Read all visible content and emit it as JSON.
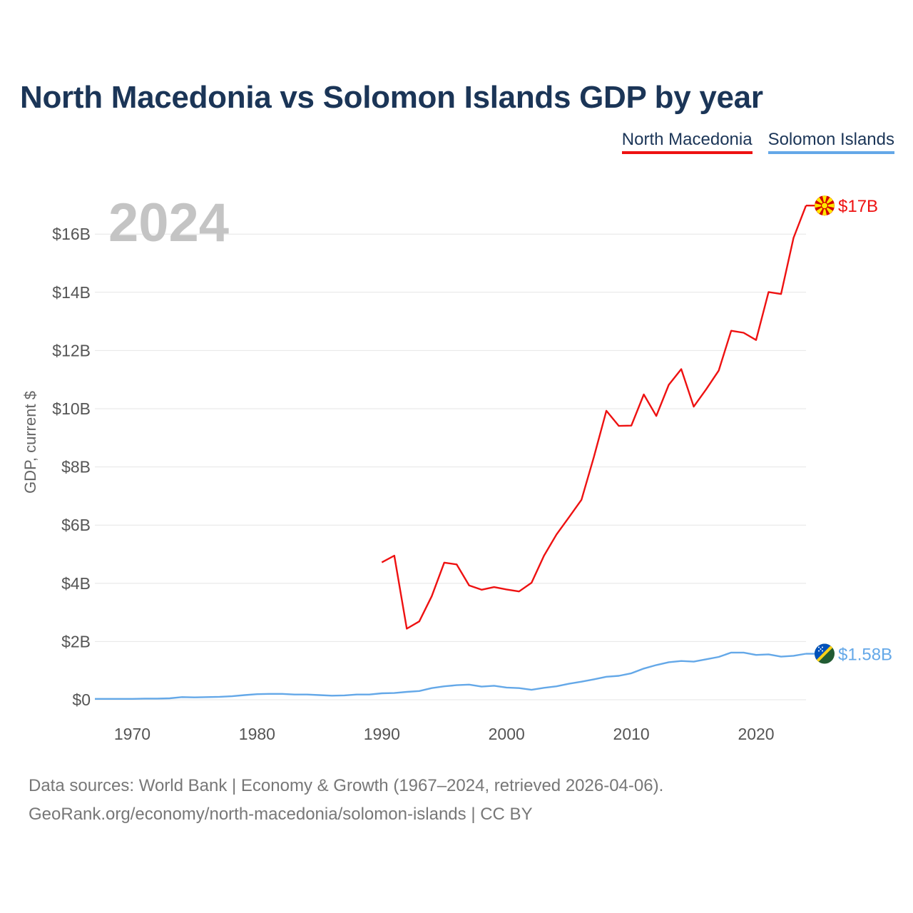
{
  "title": "North Macedonia vs Solomon Islands GDP by year",
  "year_watermark": "2024",
  "legend": [
    {
      "label": "North Macedonia",
      "color": "#ee1111"
    },
    {
      "label": "Solomon Islands",
      "color": "#64a8e8"
    }
  ],
  "source": {
    "line1": "Data sources: World Bank | Economy & Growth (1967–2024, retrieved 2026-04-06).",
    "line2": "GeoRank.org/economy/north-macedonia/solomon-islands | CC BY"
  },
  "chart_data": {
    "type": "line",
    "title": "North Macedonia vs Solomon Islands GDP by year",
    "ylabel": "GDP, current $",
    "xlabel": "",
    "xlim": [
      1967,
      2024
    ],
    "ylim": [
      0,
      17.5
    ],
    "grid": true,
    "x_ticks": [
      1970,
      1980,
      1990,
      2000,
      2010,
      2020
    ],
    "y_ticks": [
      {
        "value": 0,
        "label": "$0"
      },
      {
        "value": 2,
        "label": "$2B"
      },
      {
        "value": 4,
        "label": "$4B"
      },
      {
        "value": 6,
        "label": "$6B"
      },
      {
        "value": 8,
        "label": "$8B"
      },
      {
        "value": 10,
        "label": "$10B"
      },
      {
        "value": 12,
        "label": "$12B"
      },
      {
        "value": 14,
        "label": "$14B"
      },
      {
        "value": 16,
        "label": "$16B"
      }
    ],
    "series": [
      {
        "name": "North Macedonia",
        "color": "#ee1111",
        "flag_icon": "north-macedonia-flag-icon",
        "end_label": "$17B",
        "x": [
          1990,
          1991,
          1992,
          1993,
          1994,
          1995,
          1996,
          1997,
          1998,
          1999,
          2000,
          2001,
          2002,
          2003,
          2004,
          2005,
          2006,
          2007,
          2008,
          2009,
          2010,
          2011,
          2012,
          2013,
          2014,
          2015,
          2016,
          2017,
          2018,
          2019,
          2020,
          2021,
          2022,
          2023,
          2024
        ],
        "values": [
          4.72,
          4.95,
          2.44,
          2.69,
          3.56,
          4.71,
          4.65,
          3.93,
          3.78,
          3.87,
          3.79,
          3.72,
          4.02,
          4.95,
          5.68,
          6.27,
          6.87,
          8.34,
          9.93,
          9.41,
          9.42,
          10.49,
          9.75,
          10.82,
          11.36,
          10.07,
          10.67,
          11.31,
          12.68,
          12.61,
          12.36,
          14.01,
          13.94,
          15.87,
          16.98
        ]
      },
      {
        "name": "Solomon Islands",
        "color": "#64a8e8",
        "flag_icon": "solomon-islands-flag-icon",
        "end_label": "$1.58B",
        "x": [
          1967,
          1968,
          1969,
          1970,
          1971,
          1972,
          1973,
          1974,
          1975,
          1976,
          1977,
          1978,
          1979,
          1980,
          1981,
          1982,
          1983,
          1984,
          1985,
          1986,
          1987,
          1988,
          1989,
          1990,
          1991,
          1992,
          1993,
          1994,
          1995,
          1996,
          1997,
          1998,
          1999,
          2000,
          2001,
          2002,
          2003,
          2004,
          2005,
          2006,
          2007,
          2008,
          2009,
          2010,
          2011,
          2012,
          2013,
          2014,
          2015,
          2016,
          2017,
          2018,
          2019,
          2020,
          2021,
          2022,
          2023,
          2024
        ],
        "values": [
          0.03,
          0.03,
          0.03,
          0.03,
          0.04,
          0.04,
          0.05,
          0.09,
          0.08,
          0.09,
          0.1,
          0.12,
          0.16,
          0.19,
          0.2,
          0.2,
          0.18,
          0.18,
          0.16,
          0.14,
          0.15,
          0.18,
          0.18,
          0.22,
          0.23,
          0.27,
          0.3,
          0.4,
          0.46,
          0.5,
          0.52,
          0.45,
          0.48,
          0.42,
          0.4,
          0.34,
          0.41,
          0.46,
          0.55,
          0.62,
          0.7,
          0.79,
          0.82,
          0.91,
          1.07,
          1.19,
          1.29,
          1.33,
          1.31,
          1.39,
          1.47,
          1.62,
          1.62,
          1.54,
          1.56,
          1.48,
          1.51,
          1.58
        ]
      }
    ]
  }
}
